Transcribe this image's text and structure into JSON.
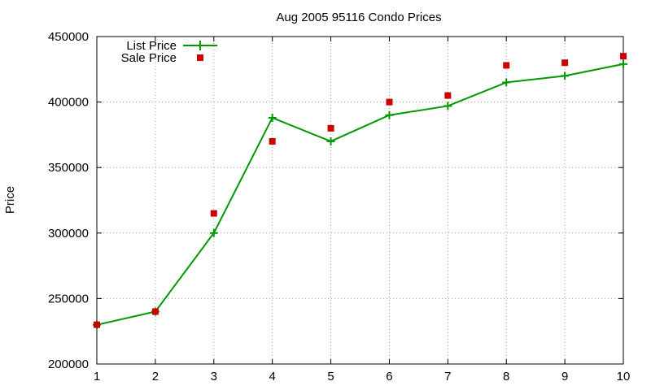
{
  "chart_data": {
    "type": "line",
    "title": "Aug 2005 95116 Condo Prices",
    "xlabel": "",
    "ylabel": "Price",
    "x": [
      1,
      2,
      3,
      4,
      5,
      6,
      7,
      8,
      9,
      10
    ],
    "xlim": [
      1,
      10
    ],
    "ylim": [
      200000,
      450000
    ],
    "x_ticks": [
      "1",
      "2",
      "3",
      "4",
      "5",
      "6",
      "7",
      "8",
      "9",
      "10"
    ],
    "y_ticks": [
      "200000",
      "250000",
      "300000",
      "350000",
      "400000",
      "450000"
    ],
    "grid": true,
    "legend_position": "top-left",
    "series": [
      {
        "name": "List Price",
        "style": "lines+points",
        "marker": "plus",
        "color": "#009900",
        "values": [
          229900,
          240000,
          300000,
          388000,
          370000,
          390000,
          397000,
          415000,
          420000,
          429000
        ]
      },
      {
        "name": "Sale Price",
        "style": "points",
        "marker": "square",
        "color": "#cc0000",
        "values": [
          230000,
          240000,
          315000,
          370000,
          380000,
          400000,
          405000,
          428000,
          430000,
          435000
        ]
      }
    ]
  }
}
